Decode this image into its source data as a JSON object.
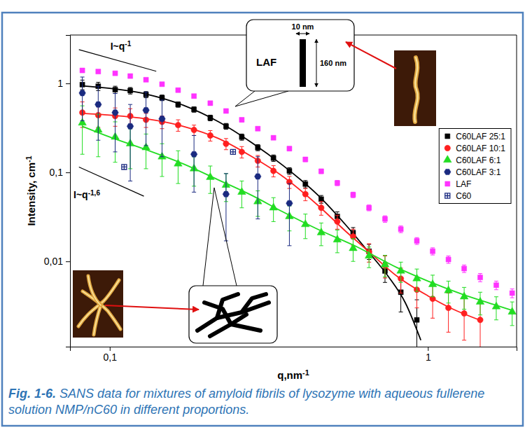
{
  "chart_data": {
    "type": "scatter",
    "log": true,
    "grid": false,
    "legend": "right",
    "xlabel": "q,nm-1",
    "ylabel": "Intensity, cm-1",
    "xlim": [
      0.075,
      1.9
    ],
    "ylim": [
      0.0011,
      3.5
    ],
    "xticks": [
      {
        "value": 0.1,
        "label": "0,1"
      },
      1
    ],
    "yticks": [
      {
        "value": 0.01,
        "label": "0,01"
      },
      {
        "value": 0.1,
        "label": "0,1"
      },
      1
    ],
    "series": [
      {
        "name": "C60LAF 25:1",
        "color": "#000000",
        "marker": "square",
        "x": [
          0.082,
          0.092,
          0.104,
          0.116,
          0.13,
          0.146,
          0.164,
          0.184,
          0.207,
          0.232,
          0.26,
          0.292,
          0.327,
          0.367,
          0.412,
          0.462,
          0.519,
          0.582,
          0.653,
          0.733,
          0.822,
          0.923
        ],
        "values": [
          0.97,
          0.93,
          0.85,
          0.83,
          0.75,
          0.69,
          0.58,
          0.51,
          0.41,
          0.33,
          0.25,
          0.19,
          0.145,
          0.104,
          0.074,
          0.05,
          0.032,
          0.021,
          0.013,
          0.0078,
          0.0045,
          0.0022
        ],
        "errors": [
          0.12,
          0.1,
          0.08,
          0.07,
          0.06,
          0.05,
          0.04,
          0.035,
          0.03,
          0.025,
          0.02,
          0.015,
          0.012,
          0.009,
          0.007,
          0.005,
          0.004,
          0.003,
          0.0025,
          0.002,
          0.0018,
          0.0015
        ],
        "fit": {
          "x": [
            0.082,
            0.1,
            0.13,
            0.17,
            0.22,
            0.28,
            0.35,
            0.45,
            0.55,
            0.65,
            0.75,
            0.85,
            0.95
          ],
          "values": [
            0.94,
            0.88,
            0.76,
            0.57,
            0.37,
            0.215,
            0.12,
            0.056,
            0.026,
            0.0128,
            0.0068,
            0.0034,
            0.0013
          ]
        }
      },
      {
        "name": "C60LAF 10:1",
        "color": "#ff2020",
        "marker": "circle",
        "x": [
          0.082,
          0.092,
          0.104,
          0.116,
          0.13,
          0.146,
          0.164,
          0.184,
          0.207,
          0.232,
          0.26,
          0.292,
          0.327,
          0.367,
          0.412,
          0.462,
          0.519,
          0.582,
          0.653,
          0.733,
          0.822,
          0.923,
          1.035,
          1.16,
          1.3,
          1.46
        ],
        "values": [
          0.47,
          0.44,
          0.43,
          0.43,
          0.39,
          0.37,
          0.34,
          0.3,
          0.26,
          0.21,
          0.17,
          0.135,
          0.104,
          0.078,
          0.057,
          0.04,
          0.028,
          0.019,
          0.0128,
          0.009,
          0.0064,
          0.0048,
          0.0038,
          0.003,
          0.0026,
          0.0022
        ],
        "errors": [
          0.15,
          0.12,
          0.1,
          0.09,
          0.07,
          0.06,
          0.05,
          0.04,
          0.035,
          0.03,
          0.025,
          0.02,
          0.015,
          0.012,
          0.009,
          0.007,
          0.005,
          0.004,
          0.003,
          0.0025,
          0.002,
          0.0018,
          0.0015,
          0.0014,
          0.0013,
          0.0012
        ],
        "fit": {
          "x": [
            0.082,
            0.1,
            0.13,
            0.17,
            0.22,
            0.28,
            0.35,
            0.45,
            0.55,
            0.65,
            0.8,
            1.0,
            1.2,
            1.45
          ],
          "values": [
            0.46,
            0.44,
            0.4,
            0.33,
            0.24,
            0.15,
            0.09,
            0.043,
            0.022,
            0.013,
            0.0068,
            0.0041,
            0.0029,
            0.0022
          ]
        }
      },
      {
        "name": "C60LAF 6:1",
        "color": "#22dd22",
        "marker": "triangle",
        "x": [
          0.082,
          0.092,
          0.104,
          0.116,
          0.13,
          0.146,
          0.164,
          0.184,
          0.207,
          0.232,
          0.26,
          0.292,
          0.327,
          0.367,
          0.412,
          0.462,
          0.519,
          0.582,
          0.653,
          0.733,
          0.822,
          0.923,
          1.035,
          1.16,
          1.3,
          1.46,
          1.64,
          1.84
        ],
        "values": [
          0.36,
          0.3,
          0.25,
          0.21,
          0.19,
          0.15,
          0.125,
          0.11,
          0.088,
          0.072,
          0.06,
          0.047,
          0.04,
          0.032,
          0.026,
          0.021,
          0.0175,
          0.014,
          0.0115,
          0.0092,
          0.0078,
          0.0064,
          0.0055,
          0.0047,
          0.004,
          0.0035,
          0.0031,
          0.0027
        ],
        "errors": [
          0.2,
          0.15,
          0.12,
          0.1,
          0.08,
          0.06,
          0.05,
          0.04,
          0.03,
          0.025,
          0.02,
          0.015,
          0.012,
          0.01,
          0.008,
          0.006,
          0.005,
          0.004,
          0.003,
          0.0025,
          0.002,
          0.0018,
          0.0015,
          0.0013,
          0.0011,
          0.001,
          0.0009,
          0.0008
        ],
        "fit": {
          "x": [
            0.082,
            0.1,
            0.13,
            0.17,
            0.22,
            0.28,
            0.35,
            0.45,
            0.6,
            0.8,
            1.0,
            1.3,
            1.6,
            1.85
          ],
          "values": [
            0.33,
            0.25,
            0.18,
            0.125,
            0.082,
            0.055,
            0.036,
            0.023,
            0.0145,
            0.0085,
            0.006,
            0.0042,
            0.0033,
            0.0028
          ]
        }
      },
      {
        "name": "C60LAF 3:1",
        "color": "#1a2a80",
        "marker": "hexagon",
        "x": [
          0.082,
          0.092,
          0.104,
          0.116,
          0.13,
          0.146,
          0.184,
          0.232,
          0.292,
          0.367
        ],
        "values": [
          0.78,
          0.58,
          0.47,
          0.33,
          0.5,
          0.4,
          0.16,
          0.057,
          0.09,
          0.045
        ],
        "errors": [
          0.4,
          0.35,
          0.3,
          0.25,
          0.3,
          0.25,
          0.1,
          0.04,
          0.06,
          0.03
        ]
      },
      {
        "name": "LAF",
        "color": "#ff33ff",
        "marker": "square",
        "x": [
          0.082,
          0.092,
          0.104,
          0.116,
          0.13,
          0.146,
          0.164,
          0.184,
          0.207,
          0.232,
          0.26,
          0.292,
          0.327,
          0.367,
          0.412,
          0.462,
          0.519,
          0.582,
          0.653,
          0.733,
          0.822,
          0.923,
          1.035,
          1.16,
          1.3,
          1.46,
          1.64,
          1.84
        ],
        "values": [
          1.4,
          1.36,
          1.3,
          1.21,
          1.1,
          0.98,
          0.84,
          0.72,
          0.6,
          0.49,
          0.39,
          0.31,
          0.245,
          0.185,
          0.14,
          0.103,
          0.076,
          0.056,
          0.04,
          0.03,
          0.023,
          0.017,
          0.013,
          0.0105,
          0.0083,
          0.0066,
          0.0054,
          0.0044
        ],
        "errors": [
          0.06,
          0.06,
          0.05,
          0.05,
          0.05,
          0.04,
          0.04,
          0.03,
          0.03,
          0.02,
          0.02,
          0.015,
          0.012,
          0.01,
          0.008,
          0.006,
          0.005,
          0.004,
          0.003,
          0.0025,
          0.002,
          0.0015,
          0.0012,
          0.001,
          0.0008,
          0.0007,
          0.0006,
          0.0005
        ]
      },
      {
        "name": "C60",
        "color": "#1a2a80",
        "marker": "square-cross",
        "x": [
          0.111,
          0.244
        ],
        "values": [
          0.115,
          0.17
        ]
      }
    ],
    "annotations": [
      {
        "text": "I~q-1",
        "x": [
          0.08,
          0.14
        ],
        "y": [
          2.4,
          1.37
        ]
      },
      {
        "text": "I~q-1,6",
        "x": [
          0.08,
          0.128
        ],
        "y": [
          0.115,
          0.054
        ]
      }
    ],
    "inset": {
      "label": "LAF",
      "width": "10 nm",
      "length": "160 nm"
    },
    "caption": {
      "label": "Fig. 1-6.",
      "text": "SANS data for mixtures of amyloid fibrils of lysozyme with aqueous fullerene solution NMP/nC60 in different proportions."
    }
  }
}
